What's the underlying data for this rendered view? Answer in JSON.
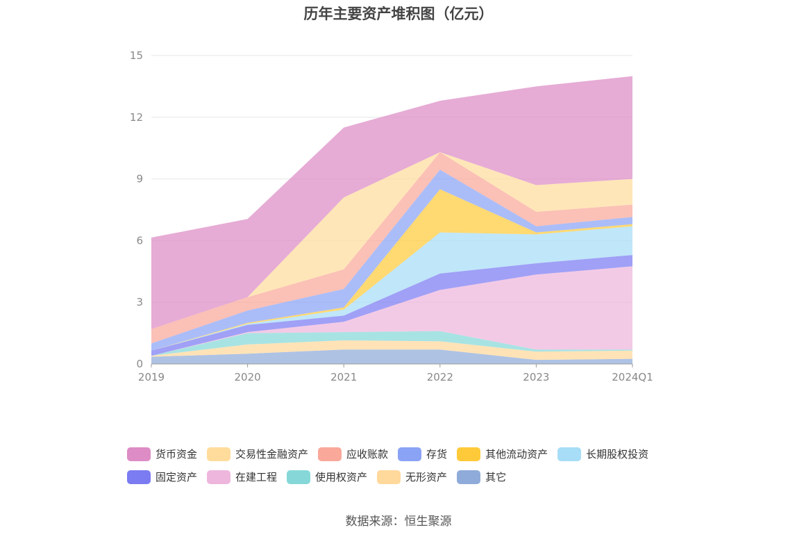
{
  "chart_data": {
    "type": "area",
    "stacked": true,
    "title": "历年主要资产堆积图（亿元）",
    "x": [
      "2019",
      "2020",
      "2021",
      "2022",
      "2023",
      "2024Q1"
    ],
    "ylim": [
      0,
      15
    ],
    "yticks": [
      0,
      3,
      6,
      9,
      12,
      15
    ],
    "legend_position": "bottom",
    "series": [
      {
        "name": "其它",
        "color": "#8fabd9",
        "values": [
          0.35,
          0.5,
          0.7,
          0.7,
          0.2,
          0.25
        ]
      },
      {
        "name": "无形资产",
        "color": "#ffd89b",
        "values": [
          0.05,
          0.45,
          0.45,
          0.4,
          0.4,
          0.4
        ]
      },
      {
        "name": "使用权资产",
        "color": "#86d8d8",
        "values": [
          0.0,
          0.55,
          0.4,
          0.5,
          0.1,
          0.05
        ]
      },
      {
        "name": "在建工程",
        "color": "#eeb6dd",
        "values": [
          0.0,
          0.05,
          0.5,
          2.0,
          3.65,
          4.05
        ]
      },
      {
        "name": "固定资产",
        "color": "#7b7bf2",
        "values": [
          0.25,
          0.35,
          0.3,
          0.8,
          0.55,
          0.55
        ]
      },
      {
        "name": "长期股权投资",
        "color": "#a7ddf7",
        "values": [
          0.0,
          0.05,
          0.3,
          2.0,
          1.4,
          1.4
        ]
      },
      {
        "name": "其他流动资产",
        "color": "#ffca3a",
        "values": [
          0.0,
          0.05,
          0.1,
          2.1,
          0.1,
          0.1
        ]
      },
      {
        "name": "存货",
        "color": "#8ba3f5",
        "values": [
          0.35,
          0.6,
          0.9,
          0.95,
          0.3,
          0.35
        ]
      },
      {
        "name": "应收账款",
        "color": "#f9a89a",
        "values": [
          0.7,
          0.65,
          0.95,
          0.85,
          0.7,
          0.6
        ]
      },
      {
        "name": "交易性金融资产",
        "color": "#ffdc9c",
        "values": [
          0.0,
          0.0,
          3.5,
          0.0,
          1.3,
          1.25
        ]
      },
      {
        "name": "货币资金",
        "color": "#dd8cc5",
        "values": [
          4.45,
          3.8,
          3.4,
          2.5,
          4.8,
          5.0
        ]
      }
    ]
  },
  "legend_rows": [
    [
      "货币资金",
      "交易性金融资产",
      "应收账款",
      "存货",
      "其他流动资产",
      "长期股权投资"
    ],
    [
      "固定资产",
      "在建工程",
      "使用权资产",
      "无形资产",
      "其它"
    ]
  ],
  "source": "数据来源：恒生聚源"
}
